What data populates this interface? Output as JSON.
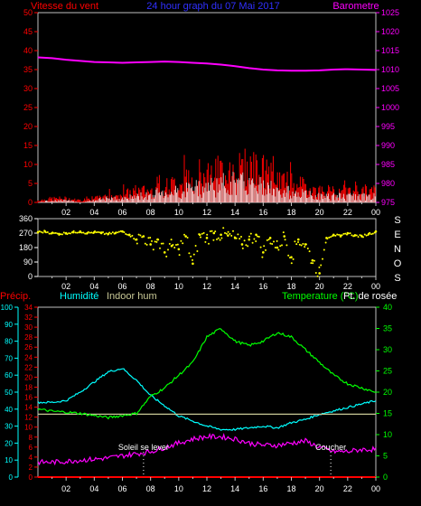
{
  "header": {
    "wind_label": "Vitesse du vent",
    "date_label": "24 hour graph du 07 Mai 2017",
    "baro_label": "Barometre"
  },
  "colors": {
    "wind": "#ff0000",
    "gust": "#ffffff",
    "baro": "#ff00ff",
    "wind_dir": "#ffff00",
    "rain": "#ff0000",
    "humidity": "#00ffff",
    "indoor_hum": "#c8c896",
    "temperature": "#00ff00",
    "dewpoint": "#ff00ff",
    "axis_red": "#ff0000",
    "axis_baro": "#ff00ff",
    "axis_cyan": "#00ffff",
    "axis_green": "#00ff00",
    "text": "#ffffff"
  },
  "x_ticks": [
    "02",
    "04",
    "06",
    "08",
    "10",
    "12",
    "14",
    "16",
    "18",
    "20",
    "22",
    "00"
  ],
  "chart_data": [
    {
      "type": "line",
      "name": "wind-baro",
      "x_hours": [
        0,
        24
      ],
      "y_left_ticks": [
        "0",
        "5",
        "10",
        "15",
        "20",
        "25",
        "30",
        "35",
        "40",
        "45",
        "50"
      ],
      "y_right_ticks": [
        "975",
        "980",
        "985",
        "990",
        "995",
        "1000",
        "1005",
        "1010",
        "1015",
        "1020",
        "1025"
      ],
      "ylim_left": [
        0,
        50
      ],
      "ylim_right": [
        975,
        1025
      ],
      "series": [
        {
          "name": "Barometre",
          "key": "baro",
          "axis": "right",
          "x": [
            0,
            1,
            2,
            3,
            4,
            5,
            6,
            7,
            8,
            9,
            10,
            11,
            12,
            13,
            14,
            15,
            16,
            17,
            18,
            19,
            20,
            21,
            22,
            23,
            24
          ],
          "y": [
            1013.2,
            1013.0,
            1012.6,
            1012.3,
            1012.0,
            1011.9,
            1011.8,
            1011.9,
            1012.0,
            1012.1,
            1012.0,
            1011.8,
            1011.6,
            1011.3,
            1010.9,
            1010.4,
            1010.0,
            1009.8,
            1009.7,
            1009.7,
            1009.8,
            1010.0,
            1010.1,
            1010.0,
            1009.9
          ]
        },
        {
          "name": "Vitesse du vent",
          "key": "wind",
          "axis": "left",
          "x": [
            0,
            1,
            2,
            3,
            4,
            5,
            6,
            7,
            8,
            9,
            10,
            11,
            12,
            13,
            14,
            15,
            16,
            17,
            18,
            19,
            20,
            21,
            22,
            23,
            24
          ],
          "y": [
            0.5,
            1,
            1,
            0.5,
            1,
            1.5,
            2,
            3,
            3,
            4,
            5,
            6,
            7,
            8,
            9,
            9,
            8,
            6,
            5,
            4,
            3,
            3,
            3,
            3,
            3
          ]
        },
        {
          "name": "Rafales",
          "key": "gust",
          "axis": "left",
          "x": [
            0,
            1,
            2,
            3,
            4,
            5,
            6,
            7,
            8,
            9,
            10,
            11,
            12,
            13,
            14,
            15,
            16,
            17,
            18,
            19,
            20,
            21,
            22,
            23,
            24
          ],
          "y": [
            0,
            0.5,
            0.5,
            0,
            0.5,
            1,
            1,
            1.5,
            2,
            2.5,
            3,
            3.5,
            4,
            4.5,
            5,
            4.5,
            4,
            3,
            2.5,
            2,
            1.5,
            1.5,
            1.5,
            1.5,
            1.5
          ]
        }
      ]
    },
    {
      "type": "scatter",
      "name": "wind-direction",
      "y_left_ticks": [
        "360",
        "270",
        "180",
        "90",
        "0"
      ],
      "ylim": [
        0,
        360
      ],
      "compass": [
        "S",
        "E",
        "N",
        "O",
        "S"
      ],
      "series": [
        {
          "name": "Direction",
          "key": "wind_dir",
          "x": [
            0,
            0.5,
            1,
            1.5,
            2,
            2.5,
            3,
            3.5,
            4,
            4.5,
            5,
            5.5,
            6,
            6.5,
            7,
            7.5,
            8,
            8.5,
            9,
            9.5,
            10,
            10.5,
            11,
            11.5,
            12,
            12.5,
            13,
            13.5,
            14,
            14.5,
            15,
            15.5,
            16,
            16.5,
            17,
            17.5,
            18,
            18.5,
            19,
            19.5,
            20,
            20.5,
            21,
            21.5,
            22,
            22.5,
            23,
            23.5,
            24
          ],
          "y": [
            275,
            280,
            270,
            265,
            270,
            275,
            280,
            270,
            275,
            270,
            265,
            270,
            280,
            260,
            230,
            250,
            200,
            230,
            150,
            190,
            170,
            250,
            80,
            260,
            240,
            270,
            260,
            255,
            240,
            200,
            230,
            260,
            150,
            240,
            180,
            250,
            120,
            230,
            200,
            100,
            20,
            240,
            260,
            250,
            270,
            255,
            250,
            265,
            280
          ]
        }
      ]
    },
    {
      "type": "line",
      "name": "temp-hum",
      "legend": [
        "Précip.",
        "Humidité",
        "Indoor hum",
        "Temperature (°C)",
        "Pt. de rosée"
      ],
      "y_cyan_ticks": [
        "0",
        "10",
        "20",
        "30",
        "40",
        "50",
        "60",
        "70",
        "80",
        "90",
        "100"
      ],
      "y_red_ticks": [
        "0",
        "2",
        "4",
        "6",
        "8",
        "10",
        "12",
        "14",
        "16",
        "18",
        "20",
        "22",
        "24",
        "26",
        "28",
        "30",
        "32",
        "34"
      ],
      "y_right_ticks": [
        "0",
        "5",
        "10",
        "15",
        "20",
        "25",
        "30",
        "35",
        "40"
      ],
      "ylim_hum": [
        0,
        100
      ],
      "ylim_temp": [
        0,
        40
      ],
      "annotations": [
        {
          "label": "Soleil se lever",
          "hour": 7.5
        },
        {
          "label": "Coucher",
          "hour": 20.8
        }
      ],
      "series": [
        {
          "name": "Humidité",
          "key": "humidity",
          "axis": "hum",
          "x": [
            0,
            1,
            2,
            3,
            4,
            5,
            6,
            7,
            8,
            9,
            10,
            11,
            12,
            13,
            14,
            15,
            16,
            17,
            18,
            19,
            20,
            21,
            22,
            23,
            24
          ],
          "y": [
            44,
            44,
            45,
            50,
            56,
            62,
            64,
            57,
            48,
            42,
            36,
            33,
            30,
            28,
            28,
            29,
            30,
            29,
            32,
            34,
            37,
            39,
            41,
            43,
            45
          ]
        },
        {
          "name": "Indoor hum",
          "key": "indoor_hum",
          "axis": "hum",
          "x": [
            0,
            24
          ],
          "y": [
            37,
            37
          ]
        },
        {
          "name": "Temperature (°C)",
          "key": "temperature",
          "axis": "temp",
          "x": [
            0,
            1,
            2,
            3,
            4,
            5,
            6,
            7,
            8,
            9,
            10,
            11,
            12,
            13,
            14,
            15,
            16,
            17,
            18,
            19,
            20,
            21,
            22,
            23,
            24
          ],
          "y": [
            16,
            15.5,
            15.3,
            15,
            14.5,
            14,
            14.5,
            15,
            19,
            21,
            24,
            27,
            33,
            35,
            32,
            31,
            32,
            34,
            33,
            30,
            27,
            24,
            22,
            21,
            20
          ]
        },
        {
          "name": "Pt. de rosée",
          "key": "dewpoint",
          "axis": "temp",
          "x": [
            0,
            1,
            2,
            3,
            4,
            5,
            6,
            7,
            8,
            9,
            10,
            11,
            12,
            13,
            14,
            15,
            16,
            17,
            18,
            19,
            20,
            21,
            22,
            23,
            24
          ],
          "y": [
            3.5,
            3.5,
            3.7,
            4,
            4.2,
            4.5,
            5,
            5.5,
            6,
            7,
            8,
            9,
            9.5,
            9.5,
            9,
            8,
            7.5,
            7.5,
            8,
            8.5,
            7,
            6,
            6,
            6.5,
            6.5
          ]
        },
        {
          "name": "Précip.",
          "key": "rain",
          "axis": "temp",
          "x": [
            0,
            24
          ],
          "y": [
            0,
            0
          ]
        }
      ]
    }
  ]
}
